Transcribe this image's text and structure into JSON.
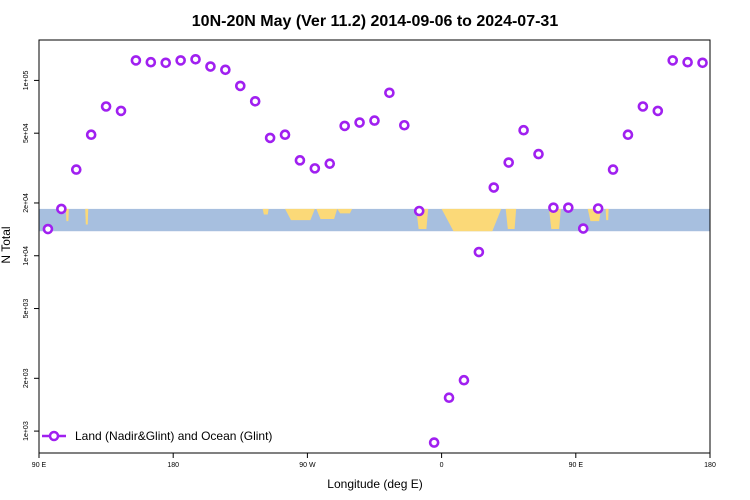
{
  "chart_data": {
    "type": "scatter",
    "title": "10N-20N May (Ver 11.2)   2014-09-06 to 2024-07-31",
    "xlabel": "Longitude (deg E)",
    "ylabel": "N Total",
    "y_scale": "log",
    "ylim": [
      750,
      170000
    ],
    "x_ticks": [
      {
        "value": 90,
        "label": "90 E"
      },
      {
        "value": 180,
        "label": "180"
      },
      {
        "value": 270,
        "label": "90 W"
      },
      {
        "value": 360,
        "label": "0"
      },
      {
        "value": 450,
        "label": "90 E"
      },
      {
        "value": 540,
        "label": "180"
      }
    ],
    "y_ticks": [
      {
        "value": 1000,
        "label": "1e+03"
      },
      {
        "value": 2000,
        "label": "2e+03"
      },
      {
        "value": 5000,
        "label": "5e+03"
      },
      {
        "value": 10000,
        "label": "1e+04"
      },
      {
        "value": 20000,
        "label": "2e+04"
      },
      {
        "value": 50000,
        "label": "5e+04"
      },
      {
        "value": 100000,
        "label": "1e+05"
      }
    ],
    "xlim": [
      90,
      540
    ],
    "band": {
      "y_top": 18500,
      "y_bottom": 13800,
      "ocean_color": "#a7bfdf",
      "land_color": "#fbd978"
    },
    "marker_color": "#a020f0",
    "legend_position": "bottom-left",
    "series": [
      {
        "name": "Land (Nadir&Glint) and Ocean (Glint)",
        "x": [
          96,
          105,
          115,
          125,
          135,
          145,
          155,
          165,
          175,
          185,
          195,
          205,
          215,
          225,
          235,
          245,
          255,
          265,
          275,
          285,
          295,
          305,
          315,
          325,
          335,
          345,
          355,
          365,
          375,
          385,
          395,
          405,
          415,
          425,
          435,
          445,
          455,
          465,
          475,
          485,
          495,
          505,
          515,
          525,
          535
        ],
        "y": [
          14200,
          18500,
          31000,
          49000,
          71000,
          67000,
          130000,
          127000,
          126000,
          130000,
          132000,
          120000,
          115000,
          93000,
          76000,
          47000,
          49000,
          35000,
          31500,
          33500,
          55000,
          57500,
          59000,
          85000,
          55500,
          18000,
          860,
          1550,
          1950,
          10500,
          24500,
          34000,
          52000,
          38000,
          18800,
          18800,
          14300,
          18600,
          31000,
          49000,
          71000,
          67000,
          130000,
          127000,
          126000
        ]
      }
    ]
  }
}
